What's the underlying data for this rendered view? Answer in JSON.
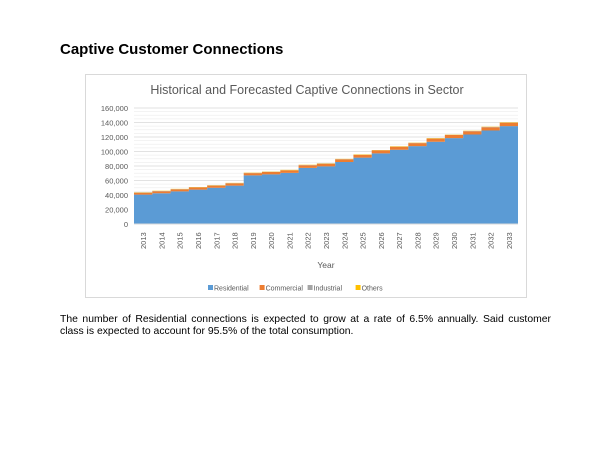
{
  "heading": "Captive Customer Connections",
  "paragraph": "The number of Residential connections is expected to grow at a rate of 6.5% annually. Said customer class is expected to account for 95.5% of the total consumption.",
  "chart_data": {
    "type": "area",
    "stacked": true,
    "step": true,
    "title": "Historical and Forecasted Captive Connections in Sector",
    "xlabel": "Year",
    "ylabel": "",
    "ylim": [
      0,
      160000
    ],
    "yticks": [
      0,
      20000,
      40000,
      60000,
      80000,
      100000,
      120000,
      140000,
      160000
    ],
    "ytick_labels": [
      "0",
      "20,000",
      "40,000",
      "60,000",
      "80,000",
      "100,000",
      "120,000",
      "140,000",
      "160,000"
    ],
    "grid": true,
    "legend": "bottom",
    "categories": [
      "2013",
      "2014",
      "2015",
      "2016",
      "2017",
      "2018",
      "2019",
      "2020",
      "2021",
      "2022",
      "2023",
      "2024",
      "2025",
      "2026",
      "2027",
      "2028",
      "2029",
      "2030",
      "2031",
      "2032",
      "2033"
    ],
    "series": [
      {
        "name": "Residential",
        "color": "#5b9bd5",
        "values": [
          40500,
          42500,
          45000,
          47500,
          50000,
          53000,
          67000,
          68500,
          70500,
          77500,
          79500,
          85500,
          91500,
          97500,
          102500,
          107500,
          113500,
          118500,
          123500,
          129000,
          135000
        ]
      },
      {
        "name": "Commercial",
        "color": "#ed7d31",
        "values": [
          2600,
          2700,
          2800,
          2900,
          3000,
          3100,
          3200,
          3300,
          3400,
          3500,
          3600,
          3700,
          3800,
          3900,
          4000,
          4100,
          4200,
          4300,
          4400,
          4500,
          4600
        ]
      },
      {
        "name": "Industrial",
        "color": "#a5a5a5",
        "values": [
          300,
          300,
          300,
          300,
          300,
          300,
          300,
          300,
          300,
          300,
          300,
          300,
          300,
          300,
          300,
          300,
          300,
          300,
          300,
          300,
          300
        ]
      },
      {
        "name": "Others",
        "color": "#ffc000",
        "values": [
          400,
          400,
          400,
          400,
          400,
          400,
          400,
          400,
          400,
          400,
          400,
          400,
          400,
          400,
          400,
          400,
          400,
          400,
          400,
          400,
          400
        ]
      }
    ]
  }
}
